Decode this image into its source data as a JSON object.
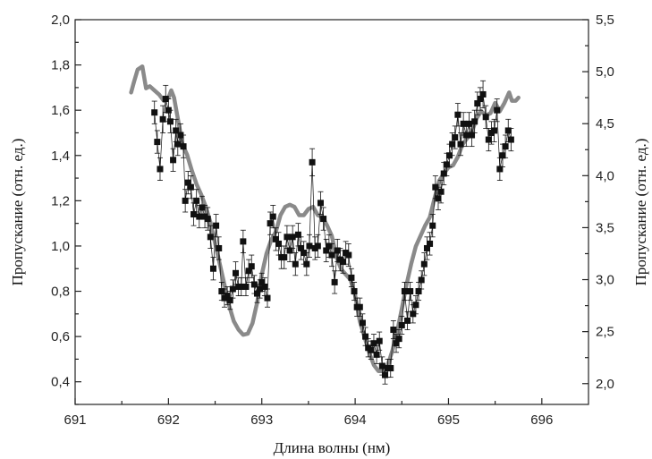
{
  "chart_data": {
    "type": "scatter",
    "title": "",
    "xlabel": "Длина волны (нм)",
    "ylabel_left": "Пропускание (отн. ед.)",
    "ylabel_right": "Пропускание (отн. ед.)",
    "xlim": [
      691,
      696.5
    ],
    "ylim_left": [
      0.3,
      2.0
    ],
    "ylim_right": [
      1.8,
      5.5
    ],
    "x_ticks": [
      "691",
      "692",
      "693",
      "694",
      "695",
      "696"
    ],
    "y_left_ticks": [
      "0,4",
      "0,6",
      "0,8",
      "1,0",
      "1,2",
      "1,4",
      "1,6",
      "1,8",
      "2,0"
    ],
    "y_right_ticks": [
      "2,0",
      "2,5",
      "3,0",
      "3,5",
      "4,0",
      "4,5",
      "5,0",
      "5,5"
    ],
    "grid": false,
    "colors": {
      "points": "#111111",
      "curve": "#8a8a8a"
    },
    "series": [
      {
        "axis": "left",
        "marker": "square",
        "error_bars": true,
        "points": [
          [
            691.85,
            1.59,
            0.05
          ],
          [
            691.88,
            1.46,
            0.05
          ],
          [
            691.91,
            1.34,
            0.05
          ],
          [
            691.94,
            1.56,
            0.06
          ],
          [
            691.97,
            1.65,
            0.06
          ],
          [
            692.0,
            1.6,
            0.05
          ],
          [
            692.02,
            1.55,
            0.05
          ],
          [
            692.05,
            1.38,
            0.05
          ],
          [
            692.08,
            1.51,
            0.05
          ],
          [
            692.1,
            1.45,
            0.05
          ],
          [
            692.13,
            1.49,
            0.05
          ],
          [
            692.16,
            1.44,
            0.05
          ],
          [
            692.18,
            1.2,
            0.05
          ],
          [
            692.21,
            1.28,
            0.05
          ],
          [
            692.24,
            1.26,
            0.05
          ],
          [
            692.27,
            1.14,
            0.05
          ],
          [
            692.3,
            1.2,
            0.05
          ],
          [
            692.33,
            1.13,
            0.05
          ],
          [
            692.36,
            1.17,
            0.05
          ],
          [
            692.39,
            1.13,
            0.05
          ],
          [
            692.42,
            1.12,
            0.05
          ],
          [
            692.45,
            1.04,
            0.05
          ],
          [
            692.48,
            0.9,
            0.05
          ],
          [
            692.51,
            1.09,
            0.05
          ],
          [
            692.54,
            0.99,
            0.05
          ],
          [
            692.57,
            0.8,
            0.04
          ],
          [
            692.6,
            0.77,
            0.04
          ],
          [
            692.63,
            0.78,
            0.04
          ],
          [
            692.66,
            0.76,
            0.04
          ],
          [
            692.69,
            0.81,
            0.04
          ],
          [
            692.72,
            0.88,
            0.05
          ],
          [
            692.75,
            0.82,
            0.04
          ],
          [
            692.78,
            0.82,
            0.04
          ],
          [
            692.8,
            1.02,
            0.05
          ],
          [
            692.83,
            0.82,
            0.04
          ],
          [
            692.86,
            0.89,
            0.05
          ],
          [
            692.89,
            0.91,
            0.05
          ],
          [
            692.92,
            0.83,
            0.04
          ],
          [
            692.95,
            0.79,
            0.04
          ],
          [
            692.98,
            0.81,
            0.04
          ],
          [
            693.0,
            0.84,
            0.04
          ],
          [
            693.03,
            0.82,
            0.04
          ],
          [
            693.06,
            0.77,
            0.04
          ],
          [
            693.09,
            1.1,
            0.05
          ],
          [
            693.12,
            1.13,
            0.05
          ],
          [
            693.15,
            1.03,
            0.05
          ],
          [
            693.18,
            1.01,
            0.05
          ],
          [
            693.21,
            0.95,
            0.05
          ],
          [
            693.24,
            0.95,
            0.05
          ],
          [
            693.27,
            1.04,
            0.05
          ],
          [
            693.3,
            0.98,
            0.05
          ],
          [
            693.33,
            1.04,
            0.05
          ],
          [
            693.36,
            0.92,
            0.05
          ],
          [
            693.39,
            1.05,
            0.05
          ],
          [
            693.42,
            0.99,
            0.05
          ],
          [
            693.45,
            0.97,
            0.05
          ],
          [
            693.48,
            0.92,
            0.05
          ],
          [
            693.51,
            1.0,
            0.05
          ],
          [
            693.54,
            1.37,
            0.06
          ],
          [
            693.57,
            0.99,
            0.05
          ],
          [
            693.6,
            1.0,
            0.05
          ],
          [
            693.63,
            1.19,
            0.05
          ],
          [
            693.66,
            1.12,
            0.05
          ],
          [
            693.69,
            0.98,
            0.05
          ],
          [
            693.72,
            1.0,
            0.05
          ],
          [
            693.75,
            0.96,
            0.05
          ],
          [
            693.78,
            0.84,
            0.05
          ],
          [
            693.81,
            0.98,
            0.05
          ],
          [
            693.84,
            0.94,
            0.05
          ],
          [
            693.87,
            0.93,
            0.05
          ],
          [
            693.9,
            0.97,
            0.05
          ],
          [
            693.93,
            0.96,
            0.05
          ],
          [
            693.96,
            0.86,
            0.04
          ],
          [
            693.99,
            0.8,
            0.04
          ],
          [
            694.02,
            0.73,
            0.04
          ],
          [
            694.05,
            0.73,
            0.04
          ],
          [
            694.08,
            0.66,
            0.04
          ],
          [
            694.11,
            0.6,
            0.04
          ],
          [
            694.14,
            0.55,
            0.04
          ],
          [
            694.17,
            0.54,
            0.04
          ],
          [
            694.2,
            0.57,
            0.04
          ],
          [
            694.23,
            0.52,
            0.04
          ],
          [
            694.26,
            0.58,
            0.04
          ],
          [
            694.29,
            0.47,
            0.04
          ],
          [
            694.32,
            0.43,
            0.04
          ],
          [
            694.35,
            0.46,
            0.04
          ],
          [
            694.38,
            0.46,
            0.04
          ],
          [
            694.41,
            0.63,
            0.04
          ],
          [
            694.44,
            0.57,
            0.04
          ],
          [
            694.47,
            0.59,
            0.04
          ],
          [
            694.5,
            0.65,
            0.04
          ],
          [
            694.53,
            0.8,
            0.04
          ],
          [
            694.56,
            0.67,
            0.04
          ],
          [
            694.59,
            0.8,
            0.04
          ],
          [
            694.62,
            0.7,
            0.04
          ],
          [
            694.65,
            0.74,
            0.04
          ],
          [
            694.68,
            0.8,
            0.04
          ],
          [
            694.71,
            0.85,
            0.04
          ],
          [
            694.74,
            0.92,
            0.05
          ],
          [
            694.77,
            0.99,
            0.05
          ],
          [
            694.8,
            1.01,
            0.05
          ],
          [
            694.83,
            1.09,
            0.05
          ],
          [
            694.86,
            1.26,
            0.05
          ],
          [
            694.89,
            1.21,
            0.05
          ],
          [
            694.92,
            1.24,
            0.05
          ],
          [
            694.95,
            1.32,
            0.05
          ],
          [
            694.98,
            1.36,
            0.05
          ],
          [
            695.01,
            1.4,
            0.05
          ],
          [
            695.04,
            1.45,
            0.05
          ],
          [
            695.07,
            1.48,
            0.05
          ],
          [
            695.1,
            1.58,
            0.05
          ],
          [
            695.13,
            1.45,
            0.05
          ],
          [
            695.16,
            1.54,
            0.05
          ],
          [
            695.19,
            1.49,
            0.05
          ],
          [
            695.22,
            1.54,
            0.05
          ],
          [
            695.25,
            1.49,
            0.05
          ],
          [
            695.28,
            1.55,
            0.05
          ],
          [
            695.31,
            1.63,
            0.05
          ],
          [
            695.34,
            1.65,
            0.05
          ],
          [
            695.37,
            1.67,
            0.06
          ],
          [
            695.4,
            1.57,
            0.05
          ],
          [
            695.43,
            1.47,
            0.05
          ],
          [
            695.46,
            1.5,
            0.05
          ],
          [
            695.49,
            1.51,
            0.05
          ],
          [
            695.52,
            1.6,
            0.05
          ],
          [
            695.55,
            1.34,
            0.05
          ],
          [
            695.58,
            1.4,
            0.05
          ],
          [
            695.61,
            1.44,
            0.05
          ],
          [
            695.64,
            1.51,
            0.05
          ],
          [
            695.67,
            1.47,
            0.05
          ]
        ]
      },
      {
        "axis": "right",
        "type": "line",
        "points": [
          [
            691.6,
            4.8
          ],
          [
            691.63,
            4.9
          ],
          [
            691.67,
            5.02
          ],
          [
            691.72,
            5.05
          ],
          [
            691.76,
            4.84
          ],
          [
            691.8,
            4.86
          ],
          [
            691.85,
            4.82
          ],
          [
            691.9,
            4.78
          ],
          [
            691.95,
            4.72
          ],
          [
            692.0,
            4.75
          ],
          [
            692.03,
            4.82
          ],
          [
            692.06,
            4.75
          ],
          [
            692.1,
            4.55
          ],
          [
            692.15,
            4.3
          ],
          [
            692.2,
            4.2
          ],
          [
            692.25,
            4.05
          ],
          [
            692.3,
            3.92
          ],
          [
            692.35,
            3.82
          ],
          [
            692.4,
            3.7
          ],
          [
            692.45,
            3.55
          ],
          [
            692.5,
            3.35
          ],
          [
            692.55,
            3.15
          ],
          [
            692.6,
            2.95
          ],
          [
            692.65,
            2.75
          ],
          [
            692.7,
            2.6
          ],
          [
            692.75,
            2.52
          ],
          [
            692.8,
            2.47
          ],
          [
            692.85,
            2.48
          ],
          [
            692.9,
            2.58
          ],
          [
            692.95,
            2.78
          ],
          [
            693.0,
            3.05
          ],
          [
            693.05,
            3.25
          ],
          [
            693.1,
            3.38
          ],
          [
            693.15,
            3.46
          ],
          [
            693.2,
            3.62
          ],
          [
            693.25,
            3.7
          ],
          [
            693.3,
            3.72
          ],
          [
            693.35,
            3.7
          ],
          [
            693.4,
            3.62
          ],
          [
            693.45,
            3.62
          ],
          [
            693.5,
            3.68
          ],
          [
            693.55,
            3.7
          ],
          [
            693.6,
            3.62
          ],
          [
            693.65,
            3.6
          ],
          [
            693.7,
            3.52
          ],
          [
            693.75,
            3.42
          ],
          [
            693.8,
            3.22
          ],
          [
            693.85,
            3.1
          ],
          [
            693.9,
            3.05
          ],
          [
            693.95,
            3.0
          ],
          [
            694.0,
            2.85
          ],
          [
            694.05,
            2.6
          ],
          [
            694.1,
            2.45
          ],
          [
            694.15,
            2.3
          ],
          [
            694.2,
            2.18
          ],
          [
            694.25,
            2.12
          ],
          [
            694.3,
            2.12
          ],
          [
            694.35,
            2.18
          ],
          [
            694.4,
            2.32
          ],
          [
            694.45,
            2.5
          ],
          [
            694.5,
            2.72
          ],
          [
            694.55,
            2.95
          ],
          [
            694.6,
            3.15
          ],
          [
            694.65,
            3.32
          ],
          [
            694.7,
            3.42
          ],
          [
            694.75,
            3.52
          ],
          [
            694.8,
            3.6
          ],
          [
            694.85,
            3.78
          ],
          [
            694.9,
            3.95
          ],
          [
            694.95,
            4.02
          ],
          [
            695.0,
            4.08
          ],
          [
            695.05,
            4.1
          ],
          [
            695.1,
            4.18
          ],
          [
            695.15,
            4.3
          ],
          [
            695.2,
            4.36
          ],
          [
            695.25,
            4.42
          ],
          [
            695.3,
            4.55
          ],
          [
            695.35,
            4.62
          ],
          [
            695.4,
            4.58
          ],
          [
            695.45,
            4.6
          ],
          [
            695.5,
            4.7
          ],
          [
            695.55,
            4.62
          ],
          [
            695.6,
            4.7
          ],
          [
            695.65,
            4.8
          ],
          [
            695.68,
            4.72
          ],
          [
            695.72,
            4.72
          ],
          [
            695.75,
            4.75
          ]
        ]
      }
    ]
  }
}
